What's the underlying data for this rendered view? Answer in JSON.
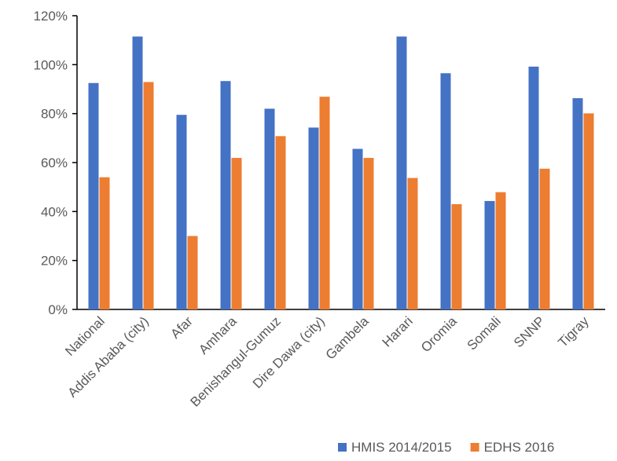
{
  "chart_data": {
    "type": "bar",
    "categories": [
      "National",
      "Addis Ababa (city)",
      "Afar",
      "Amhara",
      "Benishangul-Gumuz",
      "Dire Dawa (city)",
      "Gambela",
      "Harari",
      "Oromia",
      "Somali",
      "SNNP",
      "Tigray"
    ],
    "series": [
      {
        "name": "HMIS 2014/2015",
        "color": "#4472C4",
        "values": [
          92.5,
          111.5,
          79.5,
          93.3,
          82,
          74.3,
          65.6,
          111.5,
          96.5,
          44.3,
          99.2,
          86.3
        ]
      },
      {
        "name": "EDHS 2016",
        "color": "#ED7D31",
        "values": [
          54,
          92.9,
          30,
          61.9,
          70.8,
          86.9,
          61.9,
          53.7,
          43,
          47.9,
          57.5,
          80.1
        ]
      }
    ],
    "yticks": [
      "0%",
      "20%",
      "40%",
      "60%",
      "80%",
      "100%",
      "120%"
    ],
    "ylim": [
      0,
      120
    ],
    "legend_position": "bottom-right",
    "grid": false
  }
}
